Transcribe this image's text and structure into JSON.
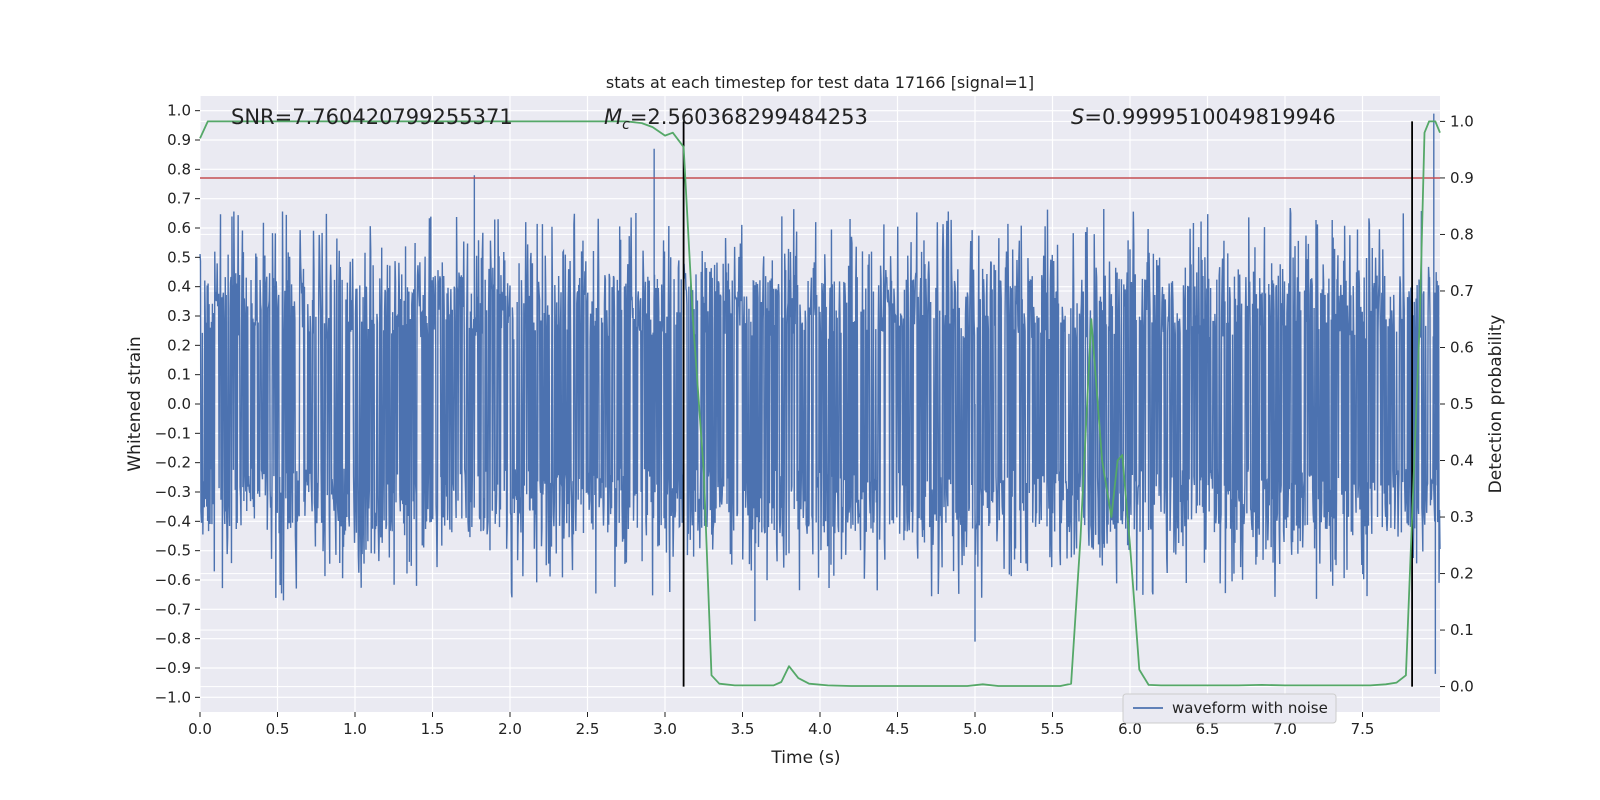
{
  "chart_data": {
    "type": "line",
    "title": "stats at each timestep for test data 17166 [signal=1]",
    "xlabel": "Time (s)",
    "ylabel": "Whitened strain",
    "y2label": "Detection probability",
    "xlim": [
      0.0,
      8.0
    ],
    "ylim": [
      -1.05,
      1.05
    ],
    "y2lim": [
      -0.045,
      1.045
    ],
    "xticks": [
      0.0,
      0.5,
      1.0,
      1.5,
      2.0,
      2.5,
      3.0,
      3.5,
      4.0,
      4.5,
      5.0,
      5.5,
      6.0,
      6.5,
      7.0,
      7.5
    ],
    "xtick_labels": [
      "0.0",
      "0.5",
      "1.0",
      "1.5",
      "2.0",
      "2.5",
      "3.0",
      "3.5",
      "4.0",
      "4.5",
      "5.0",
      "5.5",
      "6.0",
      "6.5",
      "7.0",
      "7.5"
    ],
    "yticks": [
      1.0,
      0.9,
      0.8,
      0.7,
      0.6,
      0.5,
      0.4,
      0.3,
      0.2,
      0.1,
      0.0,
      -0.1,
      -0.2,
      -0.3,
      -0.4,
      -0.5,
      -0.6,
      -0.7,
      -0.8,
      -0.9,
      -1.0
    ],
    "ytick_labels": [
      "1.0",
      "0.9",
      "0.8",
      "0.7",
      "0.6",
      "0.5",
      "0.4",
      "0.3",
      "0.2",
      "0.1",
      "0.0",
      "−0.1",
      "−0.2",
      "−0.3",
      "−0.4",
      "−0.5",
      "−0.6",
      "−0.7",
      "−0.8",
      "−0.9",
      "−1.0"
    ],
    "y2ticks": [
      1.0,
      0.9,
      0.8,
      0.7,
      0.6,
      0.5,
      0.4,
      0.3,
      0.2,
      0.1,
      0.0
    ],
    "y2tick_labels": [
      "1.0",
      "0.9",
      "0.8",
      "0.7",
      "0.6",
      "0.5",
      "0.4",
      "0.3",
      "0.2",
      "0.1",
      "0.0"
    ],
    "annotations": {
      "snr": "SNR=7.760420799255371",
      "mc_symbol": "M",
      "mc_sub": "c",
      "mc_value": "=2.560368299484253",
      "s_symbol": "S",
      "s_value": "=0.9999510049819946"
    },
    "threshold": 0.9,
    "vlines_x": [
      3.12,
      7.82
    ],
    "waveform": {
      "name": "waveform with noise",
      "envelope_typical": 0.55,
      "max_spike": 1.0,
      "min_spike": -0.92
    },
    "detection_probability": {
      "x": [
        0.0,
        0.05,
        0.1,
        0.2,
        0.3,
        0.4,
        0.5,
        0.6,
        0.7,
        0.8,
        0.9,
        1.0,
        1.2,
        1.4,
        1.6,
        1.8,
        2.0,
        2.2,
        2.4,
        2.6,
        2.75,
        2.85,
        2.92,
        3.0,
        3.05,
        3.12,
        3.18,
        3.25,
        3.3,
        3.35,
        3.45,
        3.55,
        3.65,
        3.7,
        3.75,
        3.8,
        3.86,
        3.93,
        4.05,
        4.2,
        4.4,
        4.6,
        4.8,
        4.95,
        5.05,
        5.15,
        5.3,
        5.45,
        5.55,
        5.62,
        5.68,
        5.75,
        5.82,
        5.88,
        5.92,
        5.95,
        6.0,
        6.06,
        6.12,
        6.2,
        6.4,
        6.6,
        6.7,
        6.85,
        7.0,
        7.2,
        7.4,
        7.55,
        7.65,
        7.72,
        7.78,
        7.82,
        7.87,
        7.9,
        7.93,
        7.97,
        8.0
      ],
      "values": [
        0.97,
        1.0,
        1.0,
        1.0,
        1.0,
        1.0,
        1.0,
        1.0,
        1.0,
        1.0,
        1.0,
        1.0,
        1.0,
        1.0,
        1.0,
        1.0,
        1.0,
        1.0,
        1.0,
        1.0,
        1.0,
        0.997,
        0.99,
        0.975,
        0.98,
        0.955,
        0.65,
        0.38,
        0.02,
        0.005,
        0.002,
        0.002,
        0.002,
        0.002,
        0.008,
        0.036,
        0.015,
        0.005,
        0.002,
        0.001,
        0.001,
        0.001,
        0.001,
        0.001,
        0.004,
        0.001,
        0.001,
        0.001,
        0.001,
        0.005,
        0.26,
        0.65,
        0.4,
        0.3,
        0.4,
        0.41,
        0.25,
        0.03,
        0.003,
        0.002,
        0.002,
        0.002,
        0.002,
        0.003,
        0.002,
        0.002,
        0.002,
        0.002,
        0.004,
        0.007,
        0.02,
        0.3,
        0.65,
        0.98,
        1.0,
        1.0,
        0.98
      ]
    }
  }
}
